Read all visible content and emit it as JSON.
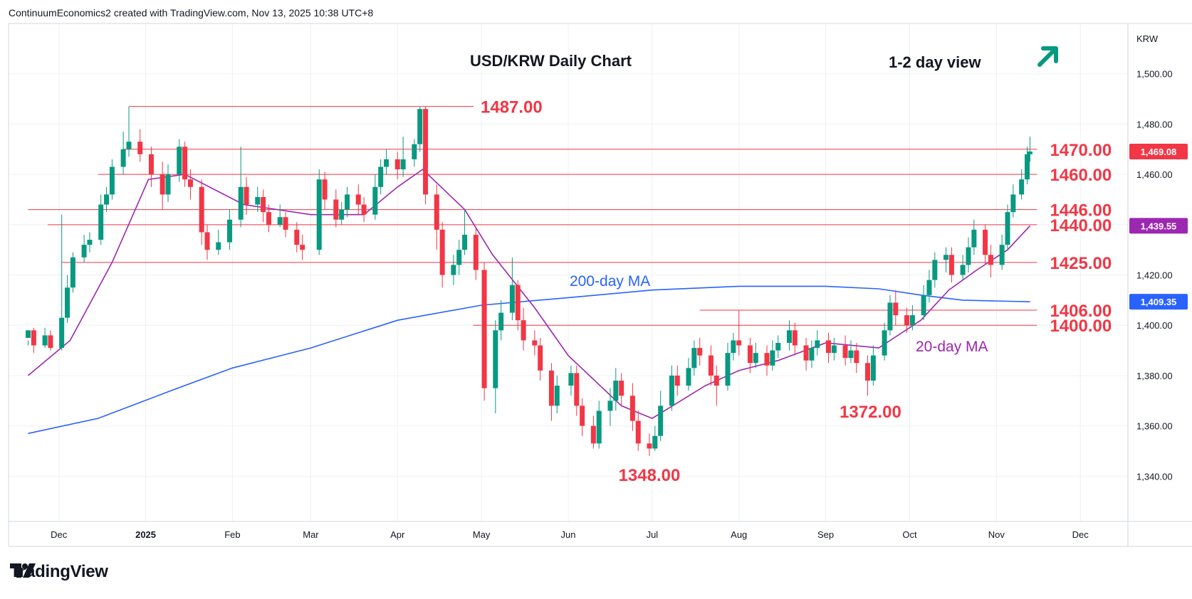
{
  "header": {
    "credit": "ContinuumEconomics2 created with TradingView.com, Nov 13, 2025 10:38 UTC+8"
  },
  "brand": {
    "name": "TradingView",
    "icon": "tradingview-logo-icon"
  },
  "view": {
    "label": "1-2 day view",
    "icon": "arrow-up-right-icon",
    "color": "#089981"
  },
  "chart_data": {
    "type": "candlestick",
    "title": "USD/KRW Daily Chart",
    "symbol": "KRW",
    "ylim": [
      1322,
      1520
    ],
    "yticks": [
      1340,
      1360,
      1380,
      1400,
      1420,
      1440,
      1460,
      1480,
      1500
    ],
    "ytick_labels": [
      "1,340.00",
      "1,360.00",
      "1,380.00",
      "1,400.00",
      "1,420.00",
      "1,440.00",
      "1,460.00",
      "1,480.00",
      "1,500.00"
    ],
    "xtick_labels": [
      {
        "label": "Dec",
        "date": "2024-12-01",
        "bold": false
      },
      {
        "label": "2025",
        "date": "2025-01-01",
        "bold": true
      },
      {
        "label": "Feb",
        "date": "2025-02-01",
        "bold": false
      },
      {
        "label": "Mar",
        "date": "2025-03-01",
        "bold": false
      },
      {
        "label": "Apr",
        "date": "2025-04-01",
        "bold": false
      },
      {
        "label": "May",
        "date": "2025-05-01",
        "bold": false
      },
      {
        "label": "Jun",
        "date": "2025-06-01",
        "bold": false
      },
      {
        "label": "Jul",
        "date": "2025-07-01",
        "bold": false
      },
      {
        "label": "Aug",
        "date": "2025-08-01",
        "bold": false
      },
      {
        "label": "Sep",
        "date": "2025-09-01",
        "bold": false
      },
      {
        "label": "Oct",
        "date": "2025-10-01",
        "bold": false
      },
      {
        "label": "Nov",
        "date": "2025-11-01",
        "bold": false
      },
      {
        "label": "Dec",
        "date": "2025-12-01",
        "bold": false
      }
    ],
    "levels": [
      {
        "value": 1487,
        "label": "1487.00",
        "from": "2024-12-26"
      },
      {
        "value": 1470,
        "label": "1470.00",
        "from": "2024-12-24"
      },
      {
        "value": 1460,
        "label": "1460.00",
        "from": "2024-12-15"
      },
      {
        "value": 1446,
        "label": "1446.00",
        "from": "2024-11-20"
      },
      {
        "value": 1440,
        "label": "1440.00",
        "from": "2024-11-27"
      },
      {
        "value": 1425,
        "label": "1425.00",
        "from": "2024-12-02"
      },
      {
        "value": 1406,
        "label": "1406.00",
        "from": "2025-07-18"
      },
      {
        "value": 1400,
        "label": "1400.00",
        "from": "2025-04-28"
      }
    ],
    "annotations": [
      {
        "label": "1372.00",
        "date": "2025-09-17",
        "value": 1372
      },
      {
        "label": "1348.00",
        "date": "2025-06-30",
        "value": 1348
      }
    ],
    "price_badges": [
      {
        "value": 1469.08,
        "label": "1,469.08",
        "color": "#f23645"
      },
      {
        "value": 1439.55,
        "label": "1,439.55",
        "color": "#9c27b0"
      },
      {
        "value": 1409.35,
        "label": "1,409.35",
        "color": "#2962ff"
      }
    ],
    "ma200": {
      "label": "200-day MA",
      "color": "#2962ff",
      "points": [
        [
          "2024-11-20",
          1357
        ],
        [
          "2024-12-15",
          1363
        ],
        [
          "2025-01-10",
          1374
        ],
        [
          "2025-02-01",
          1383
        ],
        [
          "2025-03-01",
          1391
        ],
        [
          "2025-04-01",
          1402
        ],
        [
          "2025-05-01",
          1408
        ],
        [
          "2025-06-01",
          1411
        ],
        [
          "2025-07-01",
          1414
        ],
        [
          "2025-08-01",
          1415.5
        ],
        [
          "2025-09-01",
          1415.5
        ],
        [
          "2025-09-20",
          1414.5
        ],
        [
          "2025-10-05",
          1412
        ],
        [
          "2025-10-20",
          1410
        ],
        [
          "2025-11-13",
          1409.35
        ]
      ]
    },
    "ma20": {
      "label": "20-day MA",
      "color": "#9c27b0",
      "points": [
        [
          "2024-11-20",
          1380
        ],
        [
          "2024-12-05",
          1394
        ],
        [
          "2024-12-20",
          1425
        ],
        [
          "2025-01-02",
          1458
        ],
        [
          "2025-01-15",
          1460
        ],
        [
          "2025-02-05",
          1448
        ],
        [
          "2025-03-01",
          1444
        ],
        [
          "2025-03-20",
          1444
        ],
        [
          "2025-04-01",
          1455
        ],
        [
          "2025-04-10",
          1462
        ],
        [
          "2025-04-25",
          1446
        ],
        [
          "2025-05-05",
          1428
        ],
        [
          "2025-05-20",
          1407
        ],
        [
          "2025-06-01",
          1388
        ],
        [
          "2025-06-20",
          1368
        ],
        [
          "2025-07-01",
          1363
        ],
        [
          "2025-07-20",
          1376
        ],
        [
          "2025-08-01",
          1382
        ],
        [
          "2025-08-15",
          1386
        ],
        [
          "2025-09-01",
          1393
        ],
        [
          "2025-09-20",
          1391
        ],
        [
          "2025-10-05",
          1402
        ],
        [
          "2025-10-15",
          1414
        ],
        [
          "2025-10-25",
          1422
        ],
        [
          "2025-11-05",
          1430
        ],
        [
          "2025-11-13",
          1439.55
        ]
      ]
    },
    "candles": [
      [
        "2024-11-20",
        1395,
        1398,
        1394,
        1392
      ],
      [
        "2024-11-22",
        1398,
        1392,
        1399,
        1389
      ],
      [
        "2024-11-26",
        1392,
        1396,
        1399,
        1391
      ],
      [
        "2024-11-28",
        1396,
        1391,
        1398,
        1390
      ],
      [
        "2024-12-02",
        1391,
        1403,
        1444,
        1390
      ],
      [
        "2024-12-04",
        1403,
        1415,
        1420,
        1401
      ],
      [
        "2024-12-06",
        1415,
        1427,
        1429,
        1413
      ],
      [
        "2024-12-10",
        1427,
        1432,
        1436,
        1425
      ],
      [
        "2024-12-12",
        1432,
        1434,
        1437,
        1429
      ],
      [
        "2024-12-16",
        1434,
        1448,
        1452,
        1432
      ],
      [
        "2024-12-18",
        1448,
        1452,
        1455,
        1445
      ],
      [
        "2024-12-20",
        1452,
        1463,
        1466,
        1450
      ],
      [
        "2024-12-24",
        1463,
        1470,
        1477,
        1460
      ],
      [
        "2024-12-26",
        1470,
        1473,
        1487,
        1467
      ],
      [
        "2024-12-30",
        1473,
        1468,
        1478,
        1465
      ],
      [
        "2025-01-03",
        1468,
        1460,
        1471,
        1455
      ],
      [
        "2025-01-07",
        1460,
        1452,
        1465,
        1446
      ],
      [
        "2025-01-09",
        1452,
        1460,
        1464,
        1449
      ],
      [
        "2025-01-13",
        1460,
        1471,
        1474,
        1457
      ],
      [
        "2025-01-15",
        1471,
        1458,
        1473,
        1455
      ],
      [
        "2025-01-17",
        1458,
        1455,
        1462,
        1450
      ],
      [
        "2025-01-21",
        1455,
        1437,
        1458,
        1432
      ],
      [
        "2025-01-23",
        1437,
        1430,
        1440,
        1426
      ],
      [
        "2025-01-27",
        1430,
        1433,
        1438,
        1428
      ],
      [
        "2025-01-31",
        1433,
        1442,
        1446,
        1430
      ],
      [
        "2025-02-04",
        1442,
        1455,
        1471,
        1439
      ],
      [
        "2025-02-06",
        1455,
        1448,
        1459,
        1444
      ],
      [
        "2025-02-10",
        1448,
        1451,
        1455,
        1445
      ],
      [
        "2025-02-12",
        1451,
        1445,
        1454,
        1441
      ],
      [
        "2025-02-14",
        1445,
        1440,
        1448,
        1437
      ],
      [
        "2025-02-18",
        1440,
        1443,
        1448,
        1439
      ],
      [
        "2025-02-20",
        1443,
        1438,
        1445,
        1435
      ],
      [
        "2025-02-24",
        1438,
        1432,
        1441,
        1429
      ],
      [
        "2025-02-26",
        1432,
        1430,
        1436,
        1426
      ],
      [
        "2025-03-04",
        1430,
        1458,
        1462,
        1428
      ],
      [
        "2025-03-06",
        1458,
        1450,
        1461,
        1446
      ],
      [
        "2025-03-10",
        1450,
        1442,
        1454,
        1439
      ],
      [
        "2025-03-12",
        1442,
        1446,
        1449,
        1440
      ],
      [
        "2025-03-14",
        1446,
        1452,
        1455,
        1443
      ],
      [
        "2025-03-18",
        1452,
        1448,
        1456,
        1444
      ],
      [
        "2025-03-20",
        1448,
        1444,
        1451,
        1441
      ],
      [
        "2025-03-24",
        1444,
        1455,
        1460,
        1442
      ],
      [
        "2025-03-26",
        1455,
        1463,
        1466,
        1452
      ],
      [
        "2025-03-28",
        1463,
        1466,
        1470,
        1460
      ],
      [
        "2025-04-01",
        1466,
        1462,
        1469,
        1458
      ],
      [
        "2025-04-03",
        1462,
        1466,
        1475,
        1459
      ],
      [
        "2025-04-07",
        1466,
        1472,
        1474,
        1463
      ],
      [
        "2025-04-09",
        1472,
        1486,
        1487,
        1469
      ],
      [
        "2025-04-11",
        1486,
        1452,
        1487,
        1448
      ],
      [
        "2025-04-15",
        1452,
        1438,
        1456,
        1430
      ],
      [
        "2025-04-17",
        1438,
        1420,
        1441,
        1415
      ],
      [
        "2025-04-21",
        1420,
        1424,
        1428,
        1416
      ],
      [
        "2025-04-23",
        1424,
        1430,
        1434,
        1420
      ],
      [
        "2025-04-25",
        1430,
        1436,
        1446,
        1428
      ],
      [
        "2025-04-29",
        1436,
        1422,
        1439,
        1418
      ],
      [
        "2025-05-02",
        1422,
        1375,
        1425,
        1370
      ],
      [
        "2025-05-06",
        1375,
        1398,
        1402,
        1365
      ],
      [
        "2025-05-08",
        1398,
        1405,
        1410,
        1394
      ],
      [
        "2025-05-12",
        1405,
        1416,
        1427,
        1402
      ],
      [
        "2025-05-14",
        1416,
        1402,
        1418,
        1398
      ],
      [
        "2025-05-16",
        1402,
        1394,
        1407,
        1390
      ],
      [
        "2025-05-20",
        1394,
        1392,
        1398,
        1388
      ],
      [
        "2025-05-22",
        1392,
        1382,
        1395,
        1378
      ],
      [
        "2025-05-26",
        1382,
        1368,
        1385,
        1362
      ],
      [
        "2025-05-28",
        1368,
        1376,
        1380,
        1365
      ],
      [
        "2025-06-02",
        1376,
        1381,
        1384,
        1372
      ],
      [
        "2025-06-04",
        1381,
        1368,
        1384,
        1364
      ],
      [
        "2025-06-06",
        1368,
        1360,
        1371,
        1356
      ],
      [
        "2025-06-10",
        1360,
        1353,
        1364,
        1351
      ],
      [
        "2025-06-12",
        1353,
        1366,
        1370,
        1351
      ],
      [
        "2025-06-16",
        1366,
        1370,
        1375,
        1360
      ],
      [
        "2025-06-18",
        1370,
        1378,
        1383,
        1366
      ],
      [
        "2025-06-20",
        1378,
        1372,
        1381,
        1368
      ],
      [
        "2025-06-24",
        1372,
        1362,
        1377,
        1358
      ],
      [
        "2025-06-26",
        1362,
        1353,
        1366,
        1350
      ],
      [
        "2025-06-30",
        1353,
        1351,
        1357,
        1348
      ],
      [
        "2025-07-02",
        1351,
        1356,
        1360,
        1350
      ],
      [
        "2025-07-04",
        1356,
        1368,
        1374,
        1354
      ],
      [
        "2025-07-08",
        1368,
        1380,
        1384,
        1366
      ],
      [
        "2025-07-10",
        1380,
        1376,
        1384,
        1372
      ],
      [
        "2025-07-14",
        1376,
        1383,
        1387,
        1374
      ],
      [
        "2025-07-16",
        1383,
        1391,
        1394,
        1380
      ],
      [
        "2025-07-18",
        1391,
        1388,
        1395,
        1384
      ],
      [
        "2025-07-22",
        1388,
        1380,
        1392,
        1376
      ],
      [
        "2025-07-24",
        1380,
        1376,
        1384,
        1368
      ],
      [
        "2025-07-28",
        1376,
        1389,
        1393,
        1374
      ],
      [
        "2025-07-30",
        1389,
        1394,
        1397,
        1386
      ],
      [
        "2025-08-01",
        1394,
        1392,
        1406,
        1388
      ],
      [
        "2025-08-05",
        1392,
        1385,
        1395,
        1381
      ],
      [
        "2025-08-07",
        1385,
        1389,
        1393,
        1383
      ],
      [
        "2025-08-11",
        1389,
        1384,
        1392,
        1380
      ],
      [
        "2025-08-13",
        1384,
        1390,
        1394,
        1382
      ],
      [
        "2025-08-15",
        1390,
        1393,
        1396,
        1387
      ],
      [
        "2025-08-19",
        1393,
        1398,
        1402,
        1390
      ],
      [
        "2025-08-21",
        1398,
        1392,
        1401,
        1388
      ],
      [
        "2025-08-25",
        1392,
        1386,
        1395,
        1382
      ],
      [
        "2025-08-27",
        1386,
        1391,
        1394,
        1383
      ],
      [
        "2025-08-29",
        1391,
        1394,
        1398,
        1388
      ],
      [
        "2025-09-02",
        1394,
        1389,
        1397,
        1385
      ],
      [
        "2025-09-04",
        1389,
        1392,
        1395,
        1386
      ],
      [
        "2025-09-08",
        1392,
        1387,
        1396,
        1384
      ],
      [
        "2025-09-10",
        1387,
        1390,
        1394,
        1385
      ],
      [
        "2025-09-12",
        1390,
        1385,
        1393,
        1381
      ],
      [
        "2025-09-16",
        1385,
        1378,
        1388,
        1372
      ],
      [
        "2025-09-18",
        1378,
        1388,
        1392,
        1376
      ],
      [
        "2025-09-22",
        1388,
        1398,
        1401,
        1386
      ],
      [
        "2025-09-24",
        1398,
        1409,
        1412,
        1396
      ],
      [
        "2025-09-26",
        1409,
        1404,
        1414,
        1400
      ],
      [
        "2025-09-30",
        1404,
        1400,
        1407,
        1397
      ],
      [
        "2025-10-02",
        1400,
        1404,
        1408,
        1398
      ],
      [
        "2025-10-06",
        1404,
        1412,
        1416,
        1402
      ],
      [
        "2025-10-08",
        1412,
        1418,
        1422,
        1409
      ],
      [
        "2025-10-10",
        1418,
        1426,
        1429,
        1415
      ],
      [
        "2025-10-14",
        1426,
        1428,
        1431,
        1421
      ],
      [
        "2025-10-16",
        1428,
        1420,
        1431,
        1417
      ],
      [
        "2025-10-20",
        1420,
        1424,
        1428,
        1418
      ],
      [
        "2025-10-22",
        1424,
        1431,
        1435,
        1421
      ],
      [
        "2025-10-24",
        1431,
        1438,
        1442,
        1428
      ],
      [
        "2025-10-28",
        1438,
        1428,
        1440,
        1424
      ],
      [
        "2025-10-30",
        1428,
        1424,
        1432,
        1419
      ],
      [
        "2025-11-03",
        1424,
        1432,
        1436,
        1422
      ],
      [
        "2025-11-05",
        1432,
        1445,
        1448,
        1430
      ],
      [
        "2025-11-07",
        1445,
        1452,
        1456,
        1443
      ],
      [
        "2025-11-10",
        1452,
        1458,
        1462,
        1450
      ],
      [
        "2025-11-12",
        1458,
        1468,
        1471,
        1456
      ],
      [
        "2025-11-13",
        1468,
        1469.08,
        1475,
        1465
      ]
    ]
  }
}
